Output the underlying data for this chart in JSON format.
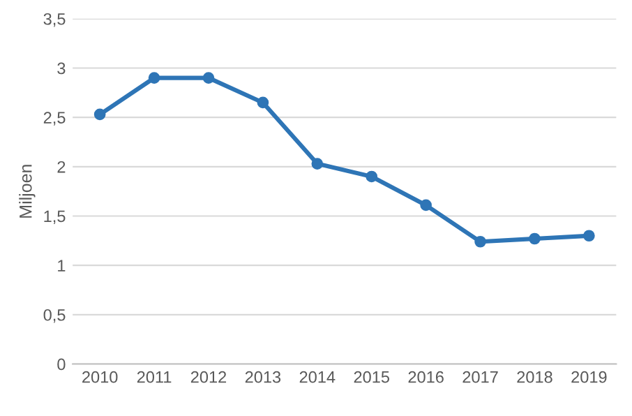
{
  "chart_data": {
    "type": "line",
    "ylabel": "Miljoen",
    "categories": [
      "2010",
      "2011",
      "2012",
      "2013",
      "2014",
      "2015",
      "2016",
      "2017",
      "2018",
      "2019"
    ],
    "series": [
      {
        "color": "#2e75b6",
        "values": [
          2.53,
          2.9,
          2.9,
          2.65,
          2.03,
          1.9,
          1.61,
          1.24,
          1.27,
          1.3
        ]
      }
    ],
    "ylim": [
      0,
      3.5
    ],
    "yticks": [
      0,
      {
        "value": 0.5,
        "label": "0,5"
      },
      1,
      {
        "value": 1.5,
        "label": "1,5"
      },
      2,
      {
        "value": 2.5,
        "label": "2,5"
      },
      3,
      {
        "value": 3.5,
        "label": "3,5"
      }
    ],
    "grid": "y",
    "marker": "circle",
    "line_style": "solid",
    "legend": false
  }
}
